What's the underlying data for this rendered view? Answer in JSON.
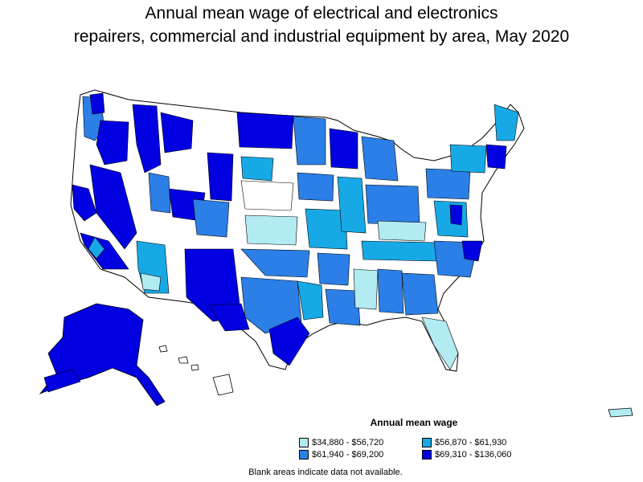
{
  "title_line1": "Annual mean wage of electrical and electronics",
  "title_line2": "repairers, commercial and industrial equipment by area, May 2020",
  "legend": {
    "title": "Annual mean wage",
    "items": [
      {
        "label": "$34,880 - $56,720",
        "color": "#b2ebf2"
      },
      {
        "label": "$56,870 - $61,930",
        "color": "#17a9e6"
      },
      {
        "label": "$61,940 - $69,200",
        "color": "#2b7fe6"
      },
      {
        "label": "$69,310 - $136,060",
        "color": "#0000e0"
      }
    ]
  },
  "note": "Blank areas indicate data not available."
}
